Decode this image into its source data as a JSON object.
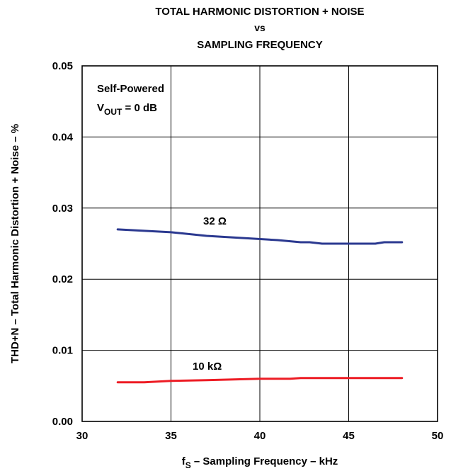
{
  "chart_data": {
    "type": "line",
    "title": [
      "TOTAL HARMONIC DISTORTION + NOISE",
      "vs",
      "SAMPLING FREQUENCY"
    ],
    "xlabel": {
      "main": "f",
      "sub": "S",
      "rest": " – Sampling Frequency – kHz"
    },
    "ylabel": "THD+N – Total Harmonic Distortion + Noise – %",
    "xlim": [
      30,
      50
    ],
    "ylim": [
      0,
      0.05
    ],
    "xticks": [
      30,
      35,
      40,
      45,
      50
    ],
    "yticks": [
      0.0,
      0.01,
      0.02,
      0.03,
      0.04,
      0.05
    ],
    "xtick_labels": [
      "30",
      "35",
      "40",
      "45",
      "50"
    ],
    "ytick_labels": [
      "0.00",
      "0.01",
      "0.02",
      "0.03",
      "0.04",
      "0.05"
    ],
    "grid": true,
    "conditions": {
      "line1": "Self-Powered",
      "line2_main": "V",
      "line2_sub": "OUT",
      "line2_rest": " = 0 dB"
    },
    "series": [
      {
        "name": "32 Ω",
        "color": "#2b3990",
        "x": [
          32,
          33.5,
          35,
          37,
          39,
          41,
          42.3,
          42.8,
          43.5,
          45,
          46.5,
          47,
          48
        ],
        "y": [
          0.027,
          0.0268,
          0.0266,
          0.0261,
          0.0258,
          0.0255,
          0.0252,
          0.0252,
          0.025,
          0.025,
          0.025,
          0.0252,
          0.0252
        ]
      },
      {
        "name": "10 kΩ",
        "color": "#ed1c24",
        "x": [
          32,
          33.5,
          35,
          37,
          38.5,
          40,
          41.7,
          42.3,
          44,
          46,
          48
        ],
        "y": [
          0.0055,
          0.0055,
          0.0057,
          0.0058,
          0.0059,
          0.006,
          0.006,
          0.0061,
          0.0061,
          0.0061,
          0.0061
        ]
      }
    ]
  }
}
